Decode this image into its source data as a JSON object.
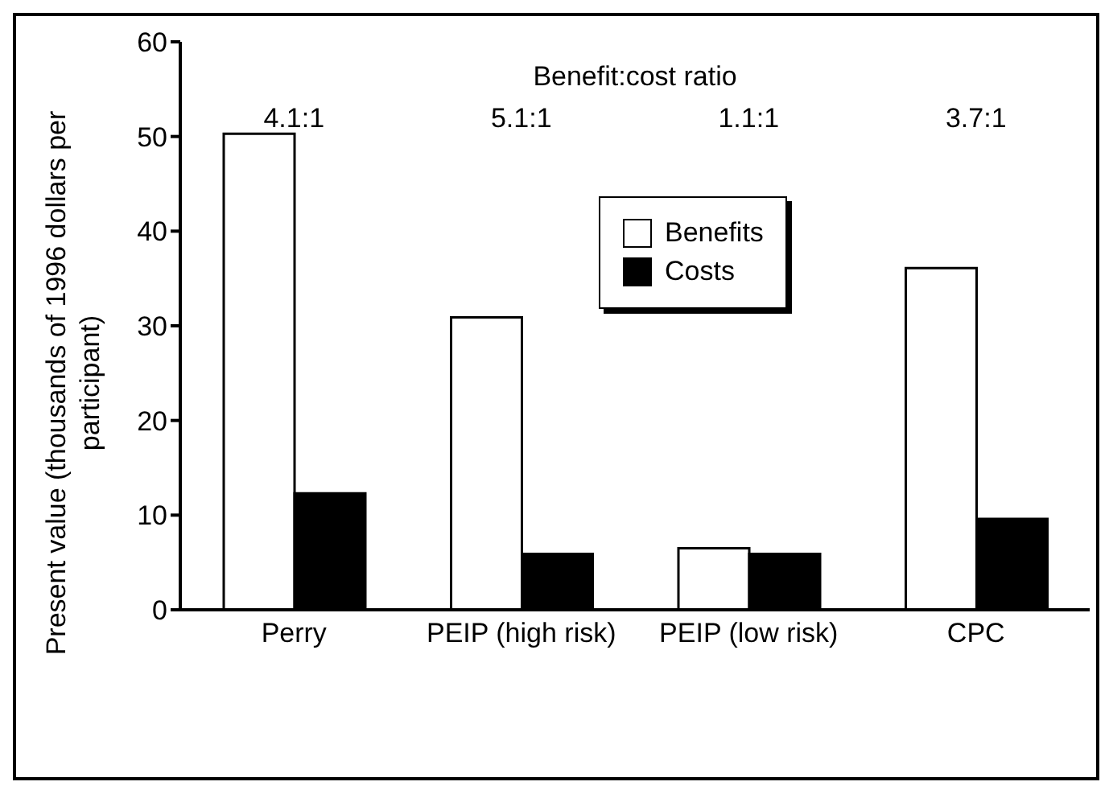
{
  "chart_data": {
    "type": "bar",
    "ylabel": "Present value (thousands of 1996 dollars per participant)",
    "categories": [
      "Perry",
      "PEIP (high risk)",
      "PEIP (low risk)",
      "CPC"
    ],
    "series": [
      {
        "name": "Benefits",
        "color": "#ffffff",
        "values": [
          50.3,
          30.9,
          6.5,
          36.1
        ]
      },
      {
        "name": "Costs",
        "color": "#000000",
        "values": [
          12.3,
          5.9,
          5.9,
          9.6
        ]
      }
    ],
    "ylim": [
      0,
      60
    ],
    "yticks": [
      0,
      10,
      20,
      30,
      40,
      50,
      60
    ],
    "grid": false,
    "legend": "top right",
    "annotations": [
      "Benefit:cost ratio",
      "4.1:1",
      "5.1:1",
      "1.1:1",
      "3.7:1"
    ]
  }
}
